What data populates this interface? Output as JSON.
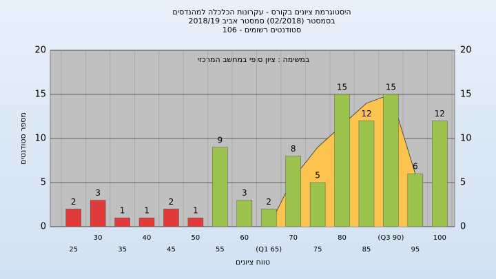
{
  "chart_data": {
    "type": "bar",
    "title": [
      "היסטוגרמת ציונים בקורס - עקרונות הכלכלה למהנדסים",
      "בסמסטר  (02/2018)  סמסטר אביב  2018/19",
      "סטודנטים רשומים - 106"
    ],
    "annotation": "במשימה : ציון סופי במחשב המרכזי",
    "x_label": "טווח ציונים",
    "y_label": "מספר סטודנטים",
    "categories": [
      "25",
      "30",
      "35",
      "40",
      "45",
      "50",
      "55",
      "60",
      "(Q1 65)",
      "70",
      "75",
      "80",
      "85",
      "(Q3 90)",
      "95",
      "100"
    ],
    "values": [
      2,
      3,
      1,
      1,
      2,
      1,
      9,
      3,
      2,
      8,
      5,
      15,
      12,
      15,
      6,
      12
    ],
    "colors": [
      "#e03a3a",
      "#e03a3a",
      "#e03a3a",
      "#e03a3a",
      "#e03a3a",
      "#e03a3a",
      "#9cc34e",
      "#9cc34e",
      "#9cc34e",
      "#9cc34e",
      "#9cc34e",
      "#9cc34e",
      "#9cc34e",
      "#9cc34e",
      "#9cc34e",
      "#9cc34e"
    ],
    "area": {
      "color": "#fbc44f",
      "values": [
        null,
        null,
        null,
        null,
        null,
        null,
        null,
        null,
        0,
        5.5,
        9,
        11.5,
        14,
        15,
        6,
        null
      ]
    },
    "ylim": [
      0,
      20
    ],
    "yticks": [
      0,
      5,
      10,
      15,
      20
    ],
    "grid": true
  }
}
